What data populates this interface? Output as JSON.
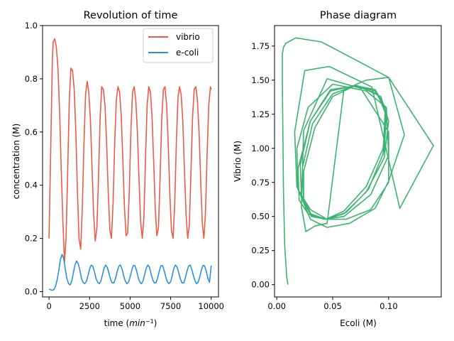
{
  "chart_data": [
    {
      "type": "line",
      "title": "Revolution of time",
      "xlabel_main": "time (",
      "xlabel_var": "min",
      "xlabel_exp": "−1",
      "xlabel_close": ")",
      "ylabel": "concentration (M)",
      "xlim": [
        -400,
        10450
      ],
      "ylim": [
        -0.02,
        1.0
      ],
      "xticks": [
        0,
        2500,
        5000,
        7500,
        10000
      ],
      "xtick_labels": [
        "0",
        "2500",
        "5000",
        "7500",
        "10000"
      ],
      "yticks": [
        0.0,
        0.2,
        0.4,
        0.6,
        0.8,
        1.0
      ],
      "ytick_labels": [
        "0.0",
        "0.2",
        "0.4",
        "0.6",
        "0.8",
        "1.0"
      ],
      "grid": false,
      "legend_position": "top-right",
      "series": [
        {
          "name": "vibrio",
          "color": "#ee5a45",
          "x": [
            0,
            100,
            200,
            250,
            350,
            450,
            550,
            650,
            750,
            850,
            950,
            1050,
            1150,
            1250,
            1350,
            1450,
            1550,
            1650,
            1750,
            1850,
            1950,
            2050,
            2150,
            2250,
            2350,
            2450,
            2550,
            2650,
            2750,
            2850,
            2950,
            3050,
            3150,
            3250,
            3350,
            3450,
            3550,
            3650,
            3750,
            3850,
            3950,
            4050,
            4150,
            4250,
            4350,
            4450,
            4550,
            4650,
            4750,
            4850,
            4950,
            5050,
            5150,
            5250,
            5350,
            5450,
            5550,
            5650,
            5750,
            5850,
            5950,
            6050,
            6150,
            6250,
            6350,
            6450,
            6550,
            6650,
            6750,
            6850,
            6950,
            7050,
            7150,
            7250,
            7350,
            7450,
            7550,
            7650,
            7750,
            7850,
            7950,
            8050,
            8150,
            8250,
            8350,
            8450,
            8550,
            8650,
            8750,
            8850,
            8950,
            9050,
            9150,
            9250,
            9350,
            9450,
            9550,
            9650,
            9750,
            9850,
            9950,
            10000
          ],
          "y": [
            0.2,
            0.52,
            0.86,
            0.94,
            0.95,
            0.92,
            0.84,
            0.68,
            0.46,
            0.27,
            0.11,
            0.2,
            0.45,
            0.72,
            0.84,
            0.83,
            0.76,
            0.6,
            0.38,
            0.2,
            0.16,
            0.31,
            0.55,
            0.74,
            0.79,
            0.75,
            0.65,
            0.47,
            0.29,
            0.19,
            0.24,
            0.43,
            0.65,
            0.77,
            0.76,
            0.7,
            0.56,
            0.37,
            0.23,
            0.2,
            0.33,
            0.56,
            0.72,
            0.77,
            0.75,
            0.66,
            0.5,
            0.32,
            0.21,
            0.22,
            0.38,
            0.61,
            0.75,
            0.77,
            0.72,
            0.6,
            0.42,
            0.26,
            0.2,
            0.28,
            0.5,
            0.7,
            0.77,
            0.75,
            0.66,
            0.49,
            0.31,
            0.21,
            0.24,
            0.43,
            0.65,
            0.76,
            0.77,
            0.7,
            0.56,
            0.37,
            0.23,
            0.2,
            0.33,
            0.56,
            0.73,
            0.77,
            0.74,
            0.64,
            0.46,
            0.29,
            0.2,
            0.25,
            0.44,
            0.65,
            0.76,
            0.77,
            0.72,
            0.6,
            0.42,
            0.26,
            0.2,
            0.3,
            0.52,
            0.7,
            0.77,
            0.76
          ]
        },
        {
          "name": "e-coli",
          "color": "#2e8fe0",
          "x": [
            0,
            100,
            200,
            300,
            400,
            500,
            600,
            700,
            800,
            900,
            1000,
            1100,
            1200,
            1300,
            1400,
            1500,
            1600,
            1700,
            1800,
            1900,
            2000,
            2100,
            2200,
            2300,
            2400,
            2500,
            2600,
            2700,
            2800,
            2900,
            3000,
            3100,
            3200,
            3300,
            3400,
            3500,
            3600,
            3700,
            3800,
            3900,
            4000,
            4100,
            4200,
            4300,
            4400,
            4500,
            4600,
            4700,
            4800,
            4900,
            5000,
            5100,
            5200,
            5300,
            5400,
            5500,
            5600,
            5700,
            5800,
            5900,
            6000,
            6100,
            6200,
            6300,
            6400,
            6500,
            6600,
            6700,
            6800,
            6900,
            7000,
            7100,
            7200,
            7300,
            7400,
            7500,
            7600,
            7700,
            7800,
            7900,
            8000,
            8100,
            8200,
            8300,
            8400,
            8500,
            8600,
            8700,
            8800,
            8900,
            9000,
            9100,
            9200,
            9300,
            9400,
            9500,
            9600,
            9700,
            9800,
            9900,
            10000
          ],
          "y": [
            0.01,
            0.007,
            0.005,
            0.008,
            0.02,
            0.045,
            0.08,
            0.12,
            0.14,
            0.125,
            0.085,
            0.05,
            0.03,
            0.025,
            0.04,
            0.07,
            0.1,
            0.115,
            0.105,
            0.08,
            0.05,
            0.035,
            0.03,
            0.038,
            0.06,
            0.085,
            0.1,
            0.095,
            0.075,
            0.05,
            0.035,
            0.03,
            0.04,
            0.065,
            0.09,
            0.1,
            0.09,
            0.068,
            0.045,
            0.033,
            0.033,
            0.05,
            0.075,
            0.095,
            0.1,
            0.085,
            0.06,
            0.04,
            0.03,
            0.035,
            0.055,
            0.08,
            0.098,
            0.097,
            0.078,
            0.052,
            0.036,
            0.03,
            0.04,
            0.065,
            0.09,
            0.1,
            0.09,
            0.066,
            0.044,
            0.032,
            0.034,
            0.052,
            0.078,
            0.097,
            0.098,
            0.08,
            0.055,
            0.037,
            0.03,
            0.038,
            0.062,
            0.088,
            0.1,
            0.092,
            0.07,
            0.047,
            0.033,
            0.033,
            0.05,
            0.075,
            0.095,
            0.1,
            0.085,
            0.06,
            0.04,
            0.03,
            0.036,
            0.056,
            0.082,
            0.099,
            0.096,
            0.075,
            0.05,
            0.035,
            0.098
          ]
        }
      ]
    },
    {
      "type": "line",
      "title": "Phase diagram",
      "xlabel": "Ecoli (M)",
      "ylabel": "Vibrio (M)",
      "xlim": [
        -0.002,
        0.147
      ],
      "ylim": [
        -0.09,
        1.9
      ],
      "xticks": [
        0.0,
        0.05,
        0.1
      ],
      "xtick_labels": [
        "0.00",
        "0.05",
        "0.10"
      ],
      "yticks": [
        0.0,
        0.25,
        0.5,
        0.75,
        1.0,
        1.25,
        1.5,
        1.75
      ],
      "ytick_labels": [
        "0.00",
        "0.25",
        "0.50",
        "0.75",
        "1.00",
        "1.25",
        "1.50",
        "1.75"
      ],
      "grid": false,
      "series": [
        {
          "color": "#3cb371",
          "x": [
            0.01,
            0.009,
            0.007,
            0.006,
            0.0055,
            0.005,
            0.005,
            0.0055,
            0.006,
            0.008,
            0.017,
            0.04,
            0.1,
            0.114,
            0.1,
            0.088,
            0.065,
            0.045,
            0.03,
            0.018,
            0.016,
            0.025,
            0.047,
            0.085,
            0.11,
            0.14,
            0.1,
            0.08,
            0.06,
            0.045,
            0.034,
            0.026,
            0.022,
            0.024,
            0.045,
            0.075,
            0.1,
            0.1,
            0.084,
            0.062,
            0.045,
            0.03,
            0.019,
            0.018,
            0.028,
            0.05,
            0.08,
            0.098,
            0.1,
            0.084,
            0.06,
            0.042,
            0.028,
            0.02,
            0.019,
            0.03,
            0.048,
            0.072,
            0.093,
            0.1,
            0.096,
            0.08,
            0.06,
            0.044,
            0.03,
            0.022,
            0.021,
            0.03,
            0.048,
            0.07,
            0.09,
            0.098,
            0.096,
            0.082,
            0.062,
            0.045,
            0.031,
            0.024,
            0.023,
            0.032,
            0.05,
            0.07,
            0.088,
            0.098,
            0.095,
            0.08,
            0.06,
            0.044,
            0.031,
            0.024,
            0.024,
            0.034,
            0.05,
            0.07,
            0.088,
            0.097,
            0.095
          ],
          "y": [
            0.0,
            0.05,
            0.3,
            0.7,
            1.1,
            1.5,
            1.7,
            1.71,
            1.74,
            1.77,
            1.81,
            1.78,
            1.52,
            1.1,
            0.76,
            0.56,
            0.45,
            0.42,
            0.48,
            0.72,
            1.12,
            1.57,
            1.6,
            1.45,
            0.56,
            1.02,
            1.52,
            1.5,
            1.43,
            0.45,
            0.43,
            0.39,
            0.57,
            1.13,
            1.51,
            1.44,
            1.12,
            0.75,
            0.55,
            0.48,
            0.48,
            0.55,
            0.7,
            1.0,
            1.3,
            1.47,
            1.42,
            1.3,
            0.95,
            0.66,
            0.5,
            0.48,
            0.52,
            0.62,
            0.85,
            1.2,
            1.43,
            1.46,
            1.38,
            1.2,
            0.93,
            0.68,
            0.52,
            0.48,
            0.52,
            0.65,
            0.88,
            1.2,
            1.42,
            1.46,
            1.4,
            1.24,
            0.98,
            0.7,
            0.53,
            0.48,
            0.51,
            0.63,
            0.86,
            1.18,
            1.4,
            1.46,
            1.42,
            1.27,
            1.0,
            0.72,
            0.54,
            0.48,
            0.5,
            0.61,
            0.83,
            1.15,
            1.38,
            1.46,
            1.43,
            1.3,
            0.95
          ]
        }
      ]
    }
  ],
  "legend": {
    "items": [
      {
        "label": "vibrio",
        "color": "#ee5a45"
      },
      {
        "label": "e-coli",
        "color": "#2e8fe0"
      }
    ]
  }
}
